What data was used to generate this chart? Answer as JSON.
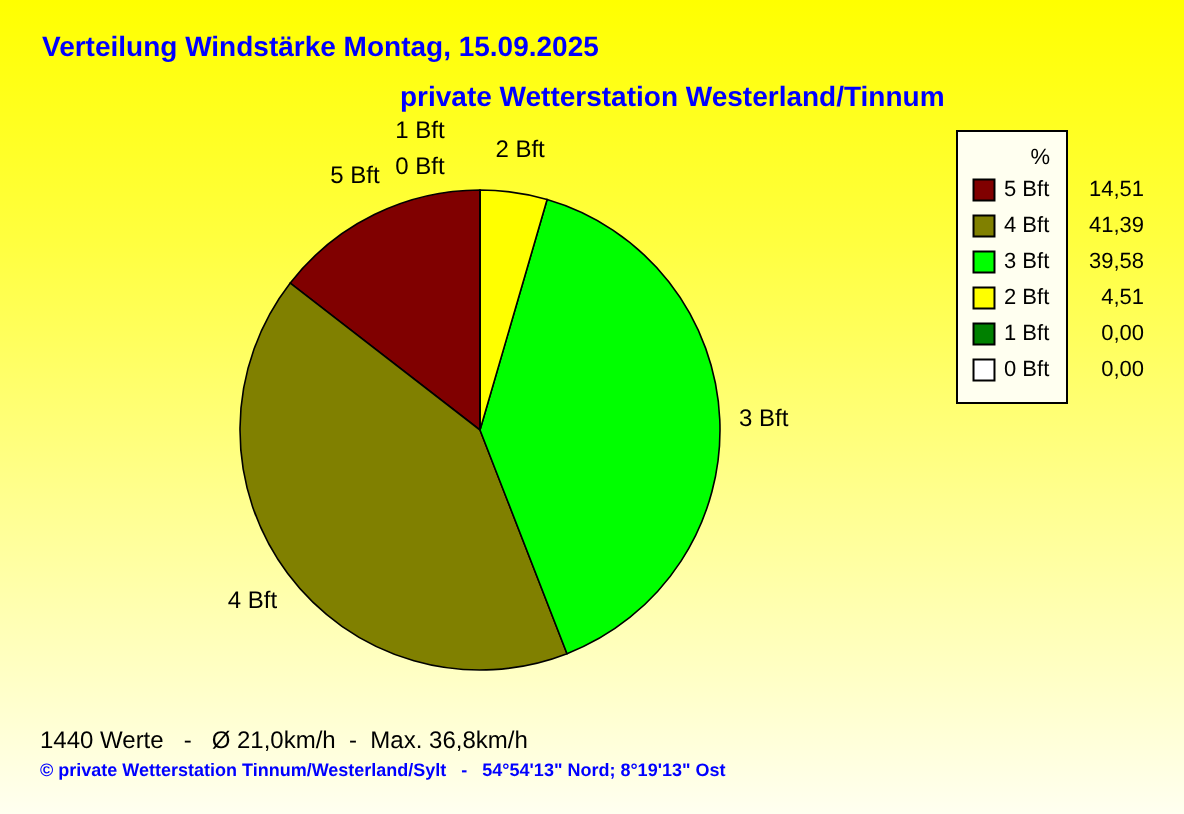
{
  "chart_data": {
    "type": "pie",
    "title": "Verteilung Windstärke  Montag, 15.09.2025",
    "subtitle": "private Wetterstation Westerland/Tinnum",
    "legend_title": "%",
    "categories": [
      "5 Bft",
      "4 Bft",
      "3 Bft",
      "2 Bft",
      "1 Bft",
      "0 Bft"
    ],
    "values": [
      14.51,
      41.39,
      39.58,
      4.51,
      0,
      0
    ],
    "value_labels": [
      "14,51",
      "41,39",
      "39,58",
      "4,51",
      "0,00",
      "0,00"
    ],
    "colors": [
      "#800000",
      "#808000",
      "#00ff00",
      "#ffff00",
      "#008000",
      "#ffffff"
    ],
    "legend": "top right",
    "annotations": [
      "1440 Werte   -   Ø 21,0km/h  -  Max. 36,8km/h",
      "© private Wetterstation Tinnum/Westerland/Sylt   -   54°54'13\" Nord; 8°19'13\" Ost"
    ]
  }
}
